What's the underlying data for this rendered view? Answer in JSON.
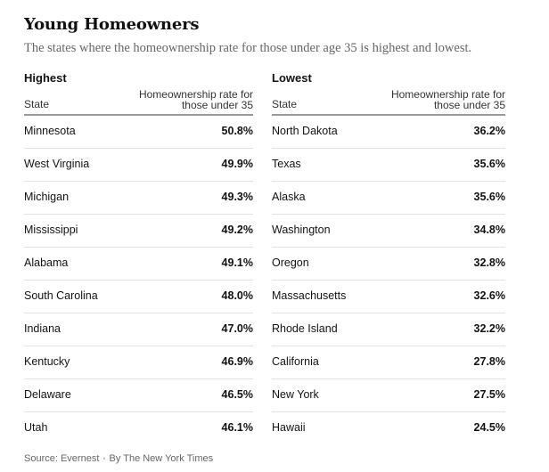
{
  "header": {
    "title": "Young Homeowners",
    "subtitle": "The states where the homeownership rate for those under age 35 is highest and lowest."
  },
  "chart_data": [
    {
      "type": "table",
      "title": "Highest",
      "columns": [
        "State",
        "Homeownership rate for those under 35"
      ],
      "rows": [
        {
          "state": "Minnesota",
          "rate": "50.8%"
        },
        {
          "state": "West Virginia",
          "rate": "49.9%"
        },
        {
          "state": "Michigan",
          "rate": "49.3%"
        },
        {
          "state": "Mississippi",
          "rate": "49.2%"
        },
        {
          "state": "Alabama",
          "rate": "49.1%"
        },
        {
          "state": "South Carolina",
          "rate": "48.0%"
        },
        {
          "state": "Indiana",
          "rate": "47.0%"
        },
        {
          "state": "Kentucky",
          "rate": "46.9%"
        },
        {
          "state": "Delaware",
          "rate": "46.5%"
        },
        {
          "state": "Utah",
          "rate": "46.1%"
        }
      ]
    },
    {
      "type": "table",
      "title": "Lowest",
      "columns": [
        "State",
        "Homeownership rate for those under 35"
      ],
      "rows": [
        {
          "state": "North Dakota",
          "rate": "36.2%"
        },
        {
          "state": "Texas",
          "rate": "35.6%"
        },
        {
          "state": "Alaska",
          "rate": "35.6%"
        },
        {
          "state": "Washington",
          "rate": "34.8%"
        },
        {
          "state": "Oregon",
          "rate": "32.8%"
        },
        {
          "state": "Massachusetts",
          "rate": "32.6%"
        },
        {
          "state": "Rhode Island",
          "rate": "32.2%"
        },
        {
          "state": "California",
          "rate": "27.8%"
        },
        {
          "state": "New York",
          "rate": "27.5%"
        },
        {
          "state": "Hawaii",
          "rate": "24.5%"
        }
      ]
    }
  ],
  "footer": {
    "source": "Source: Evernest",
    "separator": "•",
    "credit": "By The New York Times"
  }
}
